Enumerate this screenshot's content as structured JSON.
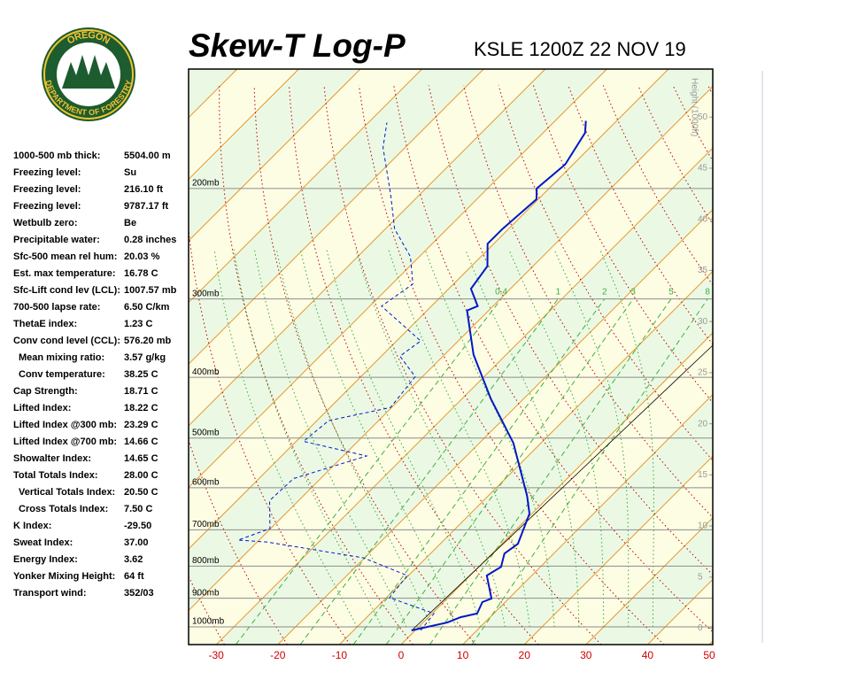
{
  "logo": {
    "top": "OREGON",
    "bottom": "DEPARTMENT OF FORESTRY"
  },
  "stats": [
    {
      "label": "1000-500 mb thick:",
      "value": "5504.00 m"
    },
    {
      "label": "Freezing level:",
      "value": "Su"
    },
    {
      "label": "Freezing level:",
      "value": "216.10 ft"
    },
    {
      "label": "Freezing level:",
      "value": "9787.17 ft"
    },
    {
      "label": "Wetbulb zero:",
      "value": "Be"
    },
    {
      "label": "Precipitable water:",
      "value": "0.28 inches"
    },
    {
      "label": "Sfc-500 mean rel hum:",
      "value": "20.03 %"
    },
    {
      "label": "Est. max temperature:",
      "value": "16.78 C"
    },
    {
      "label": "Sfc-Lift cond lev (LCL):",
      "value": "1007.57 mb"
    },
    {
      "label": "700-500 lapse rate:",
      "value": "6.50 C/km"
    },
    {
      "label": "ThetaE index:",
      "value": "1.23 C"
    },
    {
      "label": "Conv cond level (CCL):",
      "value": "576.20 mb"
    },
    {
      "label": "Mean mixing ratio:",
      "value": "3.57 g/kg",
      "indent": true
    },
    {
      "label": "Conv temperature:",
      "value": "38.25 C",
      "indent": true
    },
    {
      "label": "Cap Strength:",
      "value": "18.71 C"
    },
    {
      "label": "Lifted Index:",
      "value": "18.22 C"
    },
    {
      "label": "Lifted Index @300 mb:",
      "value": "23.29 C"
    },
    {
      "label": "Lifted Index @700 mb:",
      "value": "14.66 C"
    },
    {
      "label": "Showalter Index:",
      "value": "14.65 C"
    },
    {
      "label": "Total Totals Index:",
      "value": "28.00 C"
    },
    {
      "label": "Vertical Totals Index:",
      "value": "20.50 C",
      "indent": true
    },
    {
      "label": "Cross Totals Index:",
      "value": "7.50 C",
      "indent": true
    },
    {
      "label": "K Index:",
      "value": "-29.50"
    },
    {
      "label": "Sweat Index:",
      "value": "37.00"
    },
    {
      "label": "Energy Index:",
      "value": "3.62"
    },
    {
      "label": "Yonker Mixing Height:",
      "value": "64 ft"
    },
    {
      "label": "Transport wind:",
      "value": "352/03"
    }
  ],
  "chart_data": {
    "type": "skewt",
    "title": "Skew-T Log-P",
    "subtitle": "KSLE 1200Z 22 NOV 19",
    "y2label": "Height (1000ft)",
    "plim": [
      129,
      1067
    ],
    "pticks": [
      {
        "value": 1000,
        "label": "1000mb"
      },
      {
        "value": 900,
        "label": "900mb"
      },
      {
        "value": 800,
        "label": "800mb"
      },
      {
        "value": 700,
        "label": "700mb"
      },
      {
        "value": 600,
        "label": "600mb"
      },
      {
        "value": 500,
        "label": "500mb"
      },
      {
        "value": 400,
        "label": "400mb"
      },
      {
        "value": 300,
        "label": "300mb"
      },
      {
        "value": 200,
        "label": "200mb"
      }
    ],
    "xticks": [
      -30,
      -20,
      -10,
      0,
      10,
      20,
      30,
      40,
      50
    ],
    "y2lim": [
      -1.6,
      54.7
    ],
    "y2ticks": [
      0,
      5,
      10,
      15,
      20,
      25,
      30,
      35,
      40,
      45,
      50
    ],
    "mixing_ratios": [
      0.4,
      1,
      2,
      3,
      5,
      8
    ],
    "series": [
      {
        "color": "#0018c8",
        "dashed": false,
        "pressure": [
          1013,
          984,
          965,
          952,
          913,
          901,
          828,
          802,
          764,
          737,
          660,
          618,
          509,
          433,
          368,
          313,
          308,
          289,
          266,
          245,
          232,
          208,
          200,
          183,
          163,
          156
        ],
        "values": [
          -0.6,
          3.9,
          5.2,
          7.3,
          6.3,
          7.2,
          2.7,
          3.6,
          2.0,
          2.6,
          -0.4,
          -3.7,
          -14.5,
          -25.3,
          -35.3,
          -43.5,
          -42.5,
          -46.4,
          -47.4,
          -51.0,
          -51.0,
          -50.3,
          -52.0,
          -51.3,
          -53.2,
          -55.0
        ]
      },
      {
        "color": "#0018c8",
        "dashed": true,
        "pressure": [
          1013,
          952,
          898,
          828,
          776,
          732,
          727,
          697,
          629,
          580,
          534,
          506,
          469,
          447,
          399,
          370,
          350,
          308,
          284,
          257,
          232,
          205,
          172,
          157
        ],
        "values": [
          0.9,
          0.3,
          -9.5,
          -10.2,
          -20.2,
          -38.5,
          -43.4,
          -40.1,
          -44.7,
          -44.4,
          -36.2,
          -48.8,
          -48.1,
          -40.2,
          -41.2,
          -47.0,
          -46.1,
          -58.1,
          -56.6,
          -61.4,
          -68.5,
          -74.6,
          -83.6,
          -87.0
        ]
      }
    ]
  }
}
